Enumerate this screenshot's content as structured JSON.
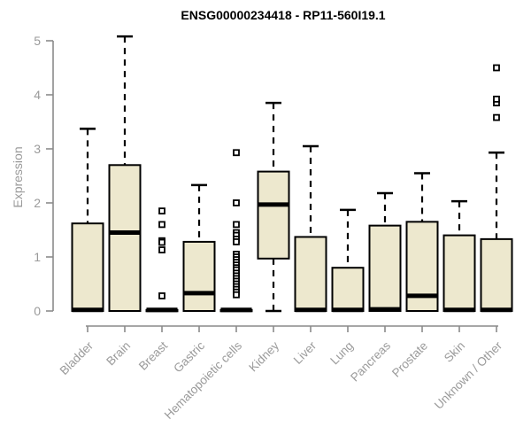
{
  "page_title": "ENSG00000234418 - RP11-560I19.1",
  "chart_data": {
    "type": "boxplot",
    "title": "ENSG00000234418 - RP11-560I19.1",
    "xlabel": "",
    "ylabel": "Expression",
    "ylim": [
      0,
      5
    ],
    "yticks": [
      0,
      1,
      2,
      3,
      4,
      5
    ],
    "grid": false,
    "legend": "none",
    "categories": [
      "Bladder",
      "Brain",
      "Breast",
      "Gastric",
      "Hematopoietic cells",
      "Kidney",
      "Liver",
      "Lung",
      "Pancreas",
      "Prostate",
      "Skin",
      "Unknown / Other"
    ],
    "boxes": [
      {
        "category": "Bladder",
        "whisker_low": 0,
        "q1": 0,
        "median": 0.02,
        "q3": 1.62,
        "whisker_high": 3.37,
        "outliers": []
      },
      {
        "category": "Brain",
        "whisker_low": 0,
        "q1": 0,
        "median": 1.45,
        "q3": 2.7,
        "whisker_high": 5.08,
        "outliers": []
      },
      {
        "category": "Breast",
        "whisker_low": 0,
        "q1": 0,
        "median": 0.02,
        "q3": 0.02,
        "whisker_high": 0.02,
        "outliers": [
          1.85,
          1.6,
          1.3,
          1.27,
          1.13,
          0.28
        ]
      },
      {
        "category": "Gastric",
        "whisker_low": 0,
        "q1": 0,
        "median": 0.33,
        "q3": 1.28,
        "whisker_high": 2.33,
        "outliers": []
      },
      {
        "category": "Hematopoietic cells",
        "whisker_low": 0,
        "q1": 0,
        "median": 0.02,
        "q3": 0.02,
        "whisker_high": 0.02,
        "outliers": [
          2.93,
          2.0,
          1.6,
          1.45,
          1.4,
          1.33,
          1.28,
          1.05,
          1.0,
          0.95,
          0.9,
          0.85,
          0.8,
          0.76,
          0.7,
          0.65,
          0.6,
          0.55,
          0.5,
          0.45,
          0.4,
          0.35,
          0.3
        ]
      },
      {
        "category": "Kidney",
        "whisker_low": 0,
        "q1": 0.97,
        "median": 1.97,
        "q3": 2.58,
        "whisker_high": 3.85,
        "outliers": []
      },
      {
        "category": "Liver",
        "whisker_low": 0,
        "q1": 0,
        "median": 0.02,
        "q3": 1.37,
        "whisker_high": 3.05,
        "outliers": []
      },
      {
        "category": "Lung",
        "whisker_low": 0,
        "q1": 0,
        "median": 0.02,
        "q3": 0.8,
        "whisker_high": 1.87,
        "outliers": []
      },
      {
        "category": "Pancreas",
        "whisker_low": 0,
        "q1": 0,
        "median": 0.03,
        "q3": 1.58,
        "whisker_high": 2.18,
        "outliers": []
      },
      {
        "category": "Prostate",
        "whisker_low": 0,
        "q1": 0,
        "median": 0.28,
        "q3": 1.65,
        "whisker_high": 2.55,
        "outliers": []
      },
      {
        "category": "Skin",
        "whisker_low": 0,
        "q1": 0,
        "median": 0.02,
        "q3": 1.4,
        "whisker_high": 2.03,
        "outliers": []
      },
      {
        "category": "Unknown / Other",
        "whisker_low": 0,
        "q1": 0,
        "median": 0.02,
        "q3": 1.33,
        "whisker_high": 2.93,
        "outliers": [
          3.58,
          3.85,
          3.92,
          4.5
        ]
      }
    ],
    "colors": {
      "background": "#FFFFFF",
      "box_fill": "#EDE8CE",
      "box_border": "#000000",
      "median": "#000000",
      "whisker": "#000000",
      "outlier": "#000000",
      "axis": "#8A8A8A",
      "tick_label": "#9A9A9A",
      "title": "#000000"
    }
  }
}
